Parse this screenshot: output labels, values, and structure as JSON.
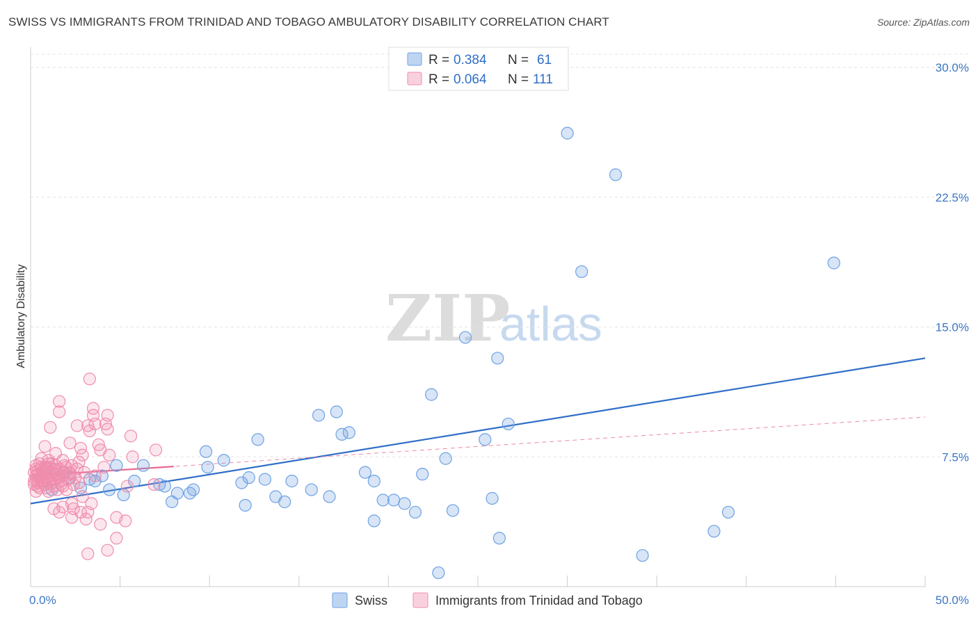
{
  "header": {
    "title": "SWISS VS IMMIGRANTS FROM TRINIDAD AND TOBAGO AMBULATORY DISABILITY CORRELATION CHART",
    "source": "Source: ZipAtlas.com"
  },
  "watermark": {
    "zip": "ZIP",
    "atlas": "atlas"
  },
  "legend": {
    "rows": [
      {
        "r_label": "R =",
        "r_value": "0.384",
        "n_label": "N =",
        "n_value": "61",
        "color": "#6ea1e3"
      },
      {
        "r_label": "R =",
        "r_value": "0.064",
        "n_label": "N =",
        "n_value": "111",
        "color": "#f08cac"
      }
    ]
  },
  "bottom_legend": [
    "Swiss",
    "Immigrants from Trinidad and Tobago"
  ],
  "chart_data": {
    "type": "scatter",
    "xlabel": "",
    "ylabel": "Ambulatory Disability",
    "xlim": [
      0,
      50
    ],
    "ylim": [
      0,
      30
    ],
    "x_tick_labels": [
      "0.0%",
      "50.0%"
    ],
    "y_ticks": [
      7.5,
      15.0,
      22.5,
      30.0
    ],
    "y_tick_labels": [
      "7.5%",
      "15.0%",
      "22.5%",
      "30.0%"
    ],
    "grid": "horizontal dashed",
    "colors": {
      "swiss": "#6ea1e3",
      "swiss_line": "#2f6ec7",
      "tt": "#f08cac",
      "tt_line": "#e8698f"
    },
    "series": [
      {
        "name": "Swiss",
        "trend": {
          "x": [
            0,
            50
          ],
          "y": [
            4.8,
            13.2
          ],
          "style": "solid"
        },
        "points": [
          [
            30.0,
            26.2
          ],
          [
            32.7,
            23.8
          ],
          [
            30.8,
            18.2
          ],
          [
            44.9,
            18.7
          ],
          [
            24.3,
            14.4
          ],
          [
            26.1,
            13.2
          ],
          [
            22.4,
            11.1
          ],
          [
            16.1,
            9.9
          ],
          [
            17.1,
            10.1
          ],
          [
            26.7,
            9.4
          ],
          [
            17.4,
            8.8
          ],
          [
            17.8,
            8.9
          ],
          [
            25.4,
            8.5
          ],
          [
            12.7,
            8.5
          ],
          [
            9.8,
            7.8
          ],
          [
            10.8,
            7.3
          ],
          [
            23.2,
            7.4
          ],
          [
            6.3,
            7.0
          ],
          [
            4.8,
            7.0
          ],
          [
            9.9,
            6.9
          ],
          [
            18.7,
            6.6
          ],
          [
            21.9,
            6.5
          ],
          [
            12.2,
            6.3
          ],
          [
            13.1,
            6.2
          ],
          [
            14.6,
            6.1
          ],
          [
            19.2,
            6.1
          ],
          [
            5.8,
            6.1
          ],
          [
            11.8,
            6.0
          ],
          [
            7.2,
            5.9
          ],
          [
            7.5,
            5.8
          ],
          [
            3.3,
            6.2
          ],
          [
            4.0,
            6.4
          ],
          [
            15.7,
            5.6
          ],
          [
            9.1,
            5.6
          ],
          [
            2.8,
            5.7
          ],
          [
            1.2,
            5.6
          ],
          [
            8.2,
            5.4
          ],
          [
            8.9,
            5.4
          ],
          [
            5.2,
            5.3
          ],
          [
            13.7,
            5.2
          ],
          [
            16.7,
            5.2
          ],
          [
            19.7,
            5.0
          ],
          [
            20.3,
            5.0
          ],
          [
            14.2,
            4.9
          ],
          [
            25.8,
            5.1
          ],
          [
            7.9,
            4.9
          ],
          [
            20.9,
            4.8
          ],
          [
            12.0,
            4.7
          ],
          [
            21.5,
            4.3
          ],
          [
            23.6,
            4.4
          ],
          [
            39.0,
            4.3
          ],
          [
            19.2,
            3.8
          ],
          [
            38.2,
            3.2
          ],
          [
            26.2,
            2.8
          ],
          [
            34.2,
            1.8
          ],
          [
            22.8,
            0.8
          ],
          [
            1.8,
            6.6
          ],
          [
            2.2,
            6.3
          ],
          [
            0.9,
            6.9
          ],
          [
            3.6,
            6.1
          ],
          [
            4.4,
            5.6
          ]
        ]
      },
      {
        "name": "Immigrants from Trinidad and Tobago",
        "trend": {
          "x": [
            0,
            50
          ],
          "y": [
            6.4,
            9.8
          ],
          "style": "dashed",
          "solid_to_x": 8.0
        },
        "points": [
          [
            3.3,
            12.0
          ],
          [
            1.6,
            10.7
          ],
          [
            1.6,
            10.1
          ],
          [
            3.5,
            10.3
          ],
          [
            4.3,
            9.9
          ],
          [
            3.5,
            9.9
          ],
          [
            1.1,
            9.2
          ],
          [
            2.6,
            9.3
          ],
          [
            3.2,
            9.3
          ],
          [
            3.6,
            9.4
          ],
          [
            4.2,
            9.4
          ],
          [
            4.3,
            9.1
          ],
          [
            3.3,
            9.0
          ],
          [
            5.6,
            8.7
          ],
          [
            2.2,
            8.3
          ],
          [
            3.8,
            8.2
          ],
          [
            0.8,
            8.1
          ],
          [
            2.8,
            8.0
          ],
          [
            3.9,
            7.9
          ],
          [
            7.0,
            7.9
          ],
          [
            1.4,
            7.7
          ],
          [
            2.9,
            7.6
          ],
          [
            4.4,
            7.6
          ],
          [
            5.7,
            7.5
          ],
          [
            0.6,
            7.4
          ],
          [
            1.0,
            7.1
          ],
          [
            1.9,
            7.0
          ],
          [
            2.7,
            7.2
          ],
          [
            0.3,
            7.0
          ],
          [
            0.8,
            6.9
          ],
          [
            1.3,
            6.8
          ],
          [
            0.4,
            6.7
          ],
          [
            1.5,
            6.7
          ],
          [
            2.2,
            6.6
          ],
          [
            0.7,
            6.6
          ],
          [
            0.3,
            6.4
          ],
          [
            1.1,
            6.4
          ],
          [
            1.8,
            6.4
          ],
          [
            2.5,
            6.3
          ],
          [
            0.5,
            6.3
          ],
          [
            0.9,
            6.2
          ],
          [
            1.4,
            6.2
          ],
          [
            0.2,
            6.1
          ],
          [
            0.6,
            6.0
          ],
          [
            1.2,
            6.0
          ],
          [
            1.7,
            5.9
          ],
          [
            0.4,
            5.8
          ],
          [
            0.9,
            5.7
          ],
          [
            1.5,
            5.6
          ],
          [
            2.0,
            5.6
          ],
          [
            1.0,
            5.5
          ],
          [
            0.3,
            5.5
          ],
          [
            5.4,
            5.8
          ],
          [
            6.9,
            5.9
          ],
          [
            2.9,
            5.2
          ],
          [
            3.4,
            4.8
          ],
          [
            2.3,
            4.8
          ],
          [
            1.8,
            4.6
          ],
          [
            2.4,
            4.5
          ],
          [
            1.3,
            4.5
          ],
          [
            1.6,
            4.3
          ],
          [
            2.8,
            4.3
          ],
          [
            3.2,
            4.3
          ],
          [
            2.3,
            4.0
          ],
          [
            3.1,
            3.9
          ],
          [
            4.8,
            4.0
          ],
          [
            5.3,
            3.8
          ],
          [
            3.9,
            3.6
          ],
          [
            4.8,
            2.8
          ],
          [
            4.3,
            2.1
          ],
          [
            3.2,
            1.9
          ],
          [
            0.6,
            6.9
          ],
          [
            1.0,
            7.3
          ],
          [
            1.8,
            7.3
          ],
          [
            0.4,
            6.5
          ],
          [
            2.0,
            6.9
          ],
          [
            1.2,
            6.6
          ],
          [
            0.7,
            6.1
          ],
          [
            0.2,
            6.6
          ],
          [
            1.6,
            6.3
          ],
          [
            2.3,
            7.0
          ],
          [
            0.9,
            6.8
          ],
          [
            1.3,
            5.8
          ],
          [
            2.6,
            6.8
          ],
          [
            0.5,
            7.1
          ],
          [
            1.1,
            6.9
          ],
          [
            0.3,
            6.2
          ],
          [
            1.7,
            6.1
          ],
          [
            0.8,
            5.9
          ],
          [
            2.1,
            6.2
          ],
          [
            1.4,
            7.0
          ],
          [
            0.6,
            6.4
          ],
          [
            1.9,
            6.6
          ],
          [
            0.2,
            5.9
          ],
          [
            1.0,
            6.0
          ],
          [
            2.4,
            5.9
          ],
          [
            0.7,
            6.7
          ],
          [
            1.5,
            6.5
          ],
          [
            3.0,
            6.6
          ],
          [
            2.7,
            6.0
          ],
          [
            0.4,
            6.0
          ],
          [
            1.2,
            7.1
          ],
          [
            1.8,
            5.8
          ],
          [
            0.9,
            6.3
          ],
          [
            2.2,
            6.5
          ],
          [
            0.5,
            5.7
          ],
          [
            1.6,
            6.8
          ],
          [
            3.6,
            6.4
          ],
          [
            0.3,
            6.8
          ],
          [
            1.3,
            6.2
          ],
          [
            4.1,
            6.9
          ]
        ]
      }
    ]
  }
}
